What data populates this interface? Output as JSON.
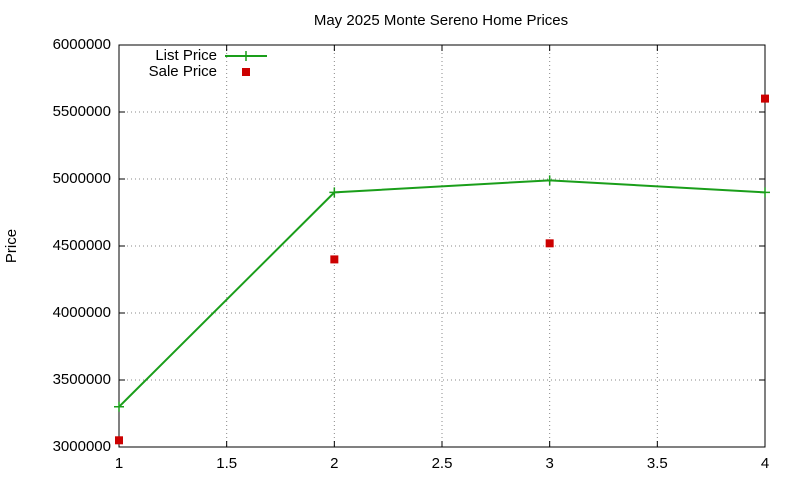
{
  "chart_data": {
    "type": "line",
    "title": "May 2025 Monte Sereno Home Prices",
    "y_label": "Price",
    "x": [
      1,
      2,
      3,
      4
    ],
    "series": [
      {
        "name": "List Price",
        "color": "#1a9e1a",
        "mode": "lines+markers",
        "values": [
          3300000,
          4900000,
          4990000,
          4900000
        ]
      },
      {
        "name": "Sale Price",
        "color": "#cc0000",
        "mode": "markers",
        "values": [
          3050000,
          4400000,
          4520000,
          5600000
        ]
      }
    ],
    "xlim": [
      1,
      4
    ],
    "xticks": [
      1,
      1.5,
      2,
      2.5,
      3,
      3.5,
      4
    ],
    "ylim": [
      3000000,
      6000000
    ],
    "yticks": [
      3000000,
      3500000,
      4000000,
      4500000,
      5000000,
      5500000,
      6000000
    ],
    "grid": true,
    "legend": "top-left"
  }
}
